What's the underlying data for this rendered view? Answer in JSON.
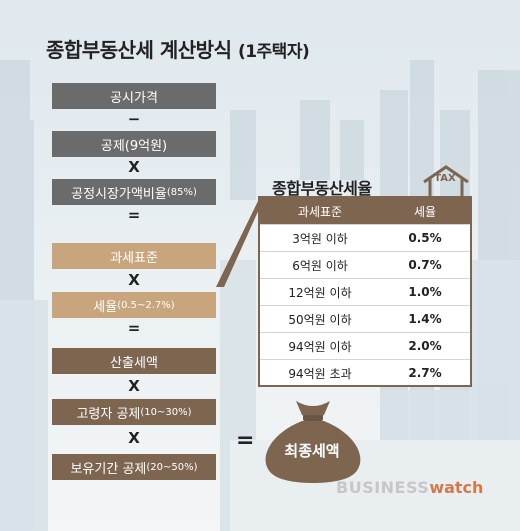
{
  "title": {
    "main": "종합부동산세 계산방식",
    "paren": "(1주택자)"
  },
  "formula": {
    "box1": "공시가격",
    "op1": "−",
    "box2": "공제(9억원)",
    "op2": "X",
    "box3_main": "공정시장가액비율",
    "box3_small": "(85%)",
    "op3": "=",
    "box4": "과세표준",
    "op4": "X",
    "box5_main": "세율",
    "box5_small": "(0.5~2.7%)",
    "op5": "=",
    "box6": "산출세액",
    "op6": "X",
    "box7_main": "고령자 공제",
    "box7_small": "(10~30%)",
    "op7": "X",
    "box8_main": "보유기간 공제",
    "box8_small": "(20~50%)",
    "op8": "=",
    "result": "최종세액"
  },
  "rates": {
    "title": "종합부동산세율",
    "house_label": "TAX",
    "header": {
      "base": "과세표준",
      "rate": "세율"
    },
    "rows": [
      {
        "base": "3억원 이하",
        "rate": "0.5%"
      },
      {
        "base": "6억원 이하",
        "rate": "0.7%"
      },
      {
        "base": "12억원 이하",
        "rate": "1.0%"
      },
      {
        "base": "50억원 이하",
        "rate": "1.4%"
      },
      {
        "base": "94억원 이하",
        "rate": "2.0%"
      },
      {
        "base": "94억원 초과",
        "rate": "2.7%"
      }
    ]
  },
  "brand": {
    "part1": "BUSINESS",
    "part2": "watch"
  },
  "colors": {
    "gray": "#6b6b6b",
    "tan": "#c9a57d",
    "brown": "#7e6550",
    "accent": "#d37a4a"
  }
}
